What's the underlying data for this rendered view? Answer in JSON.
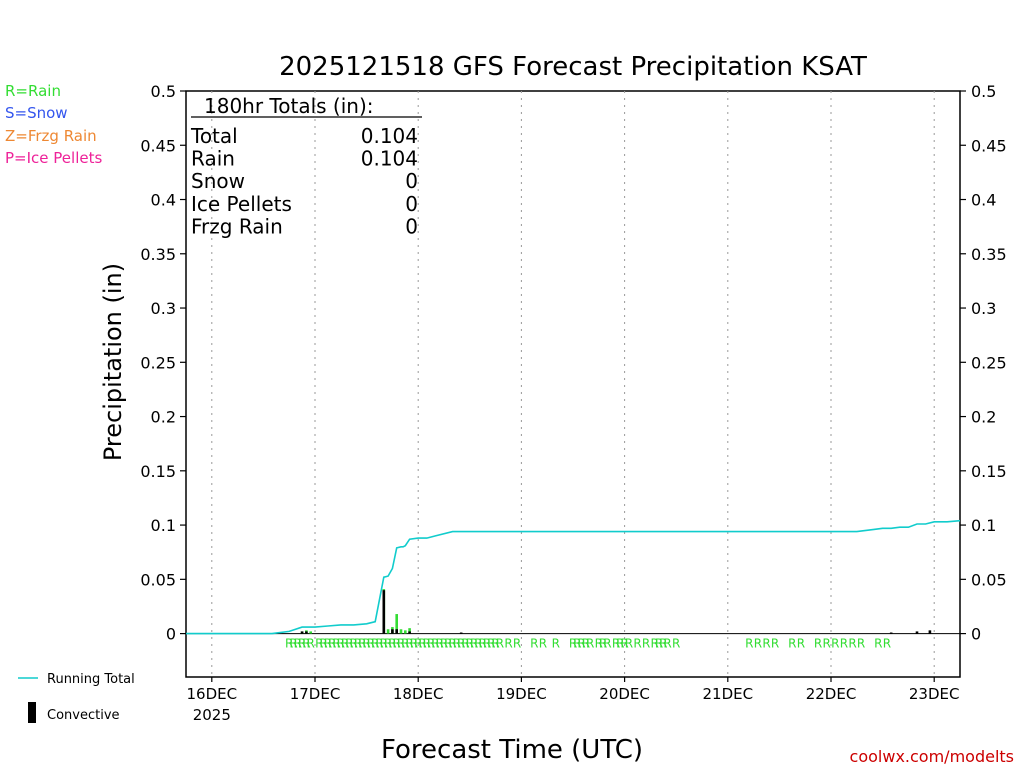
{
  "colors": {
    "rain": "#33dd33",
    "snow": "#3355ee",
    "frzg_rain": "#ee8833",
    "ice_pellets": "#ee2299",
    "running_total": "#11cccc",
    "convective": "#000000",
    "site_link": "#cc0000"
  },
  "legend_left": {
    "rain": "R=Rain",
    "snow": "S=Snow",
    "frzg_rain": "Z=Frzg Rain",
    "ice_pellets": "P=Ice Pellets"
  },
  "legend_bottom": {
    "running_total": "Running Total",
    "convective": "Convective"
  },
  "footer": {
    "site": "coolwx.com/modelts"
  },
  "chart_data": {
    "type": "bar",
    "title": "2025121518 GFS Forecast Precipitation KSAT",
    "xlabel": "Forecast Time (UTC)",
    "ylabel": "Precipitation (in)",
    "ylim": [
      -0.04,
      0.5
    ],
    "yticks": [
      0,
      0.05,
      0.1,
      0.15,
      0.2,
      0.25,
      0.3,
      0.35,
      0.4,
      0.45,
      0.5
    ],
    "ytick_labels": [
      "0",
      "0.05",
      "0.1",
      "0.15",
      "0.2",
      "0.25",
      "0.3",
      "0.35",
      "0.4",
      "0.45",
      "0.5"
    ],
    "x_unit": "hours after 16DEC 00Z",
    "xlim": [
      -6,
      174
    ],
    "xticks": [
      {
        "hour": 0,
        "label": "16DEC",
        "sublabel": "2025"
      },
      {
        "hour": 24,
        "label": "17DEC",
        "sublabel": ""
      },
      {
        "hour": 48,
        "label": "18DEC",
        "sublabel": ""
      },
      {
        "hour": 72,
        "label": "19DEC",
        "sublabel": ""
      },
      {
        "hour": 96,
        "label": "20DEC",
        "sublabel": ""
      },
      {
        "hour": 120,
        "label": "21DEC",
        "sublabel": ""
      },
      {
        "hour": 144,
        "label": "22DEC",
        "sublabel": ""
      },
      {
        "hour": 168,
        "label": "23DEC",
        "sublabel": ""
      }
    ],
    "totals_box": {
      "heading": "180hr Totals (in):",
      "rows": [
        {
          "label": "Total",
          "value": "0.104"
        },
        {
          "label": "Rain",
          "value": "0.104"
        },
        {
          "label": "Snow",
          "value": "0"
        },
        {
          "label": "Ice Pellets",
          "value": "0"
        },
        {
          "label": "Frzg Rain",
          "value": "0"
        }
      ]
    },
    "running_total": {
      "name": "Running Total",
      "x": [
        -6,
        14,
        18,
        21,
        24,
        27,
        30,
        33,
        36,
        38,
        40,
        41,
        42,
        43,
        44,
        44.5,
        45,
        46,
        48,
        50,
        51,
        52,
        56,
        60,
        66,
        96,
        144,
        150,
        154,
        156,
        158,
        160,
        162,
        164,
        166,
        168,
        171,
        174
      ],
      "y": [
        0,
        0,
        0.002,
        0.006,
        0.006,
        0.007,
        0.008,
        0.008,
        0.009,
        0.011,
        0.052,
        0.053,
        0.06,
        0.079,
        0.08,
        0.08,
        0.081,
        0.087,
        0.088,
        0.088,
        0.089,
        0.09,
        0.094,
        0.094,
        0.094,
        0.094,
        0.094,
        0.094,
        0.096,
        0.097,
        0.097,
        0.098,
        0.098,
        0.101,
        0.101,
        0.103,
        0.103,
        0.104
      ]
    },
    "series": [
      {
        "name": "Rain",
        "x": [
          21,
          22,
          23,
          40,
          41,
          42,
          43,
          44,
          45,
          46,
          174
        ],
        "values": [
          0.002,
          0.003,
          0.002,
          0.041,
          0.004,
          0.006,
          0.018,
          0.004,
          0.003,
          0.005,
          0.0
        ]
      },
      {
        "name": "Convective",
        "x": [
          21,
          22,
          40,
          42,
          43,
          46,
          58,
          158,
          164,
          167
        ],
        "values": [
          0.002,
          0.002,
          0.04,
          0.004,
          0.004,
          0.002,
          0.001,
          0.001,
          0.002,
          0.003
        ]
      }
    ],
    "precip_type_markers": {
      "symbol": "R",
      "hours": [
        18,
        19,
        20,
        21,
        22,
        23,
        25,
        26,
        27,
        28,
        29,
        30,
        31,
        32,
        33,
        34,
        35,
        36,
        37,
        38,
        39,
        40,
        41,
        42,
        43,
        44,
        45,
        46,
        47,
        48,
        49,
        50,
        51,
        52,
        53,
        54,
        55,
        56,
        57,
        58,
        59,
        60,
        61,
        62,
        63,
        64,
        65,
        66,
        67,
        69,
        71,
        75,
        77,
        80,
        84,
        85,
        86,
        87,
        88,
        90,
        91,
        92,
        94,
        95,
        96,
        97,
        99,
        101,
        103,
        104,
        105,
        106,
        108,
        125,
        127,
        129,
        131,
        135,
        137,
        141,
        143,
        145,
        147,
        149,
        151,
        155,
        157
      ]
    }
  }
}
